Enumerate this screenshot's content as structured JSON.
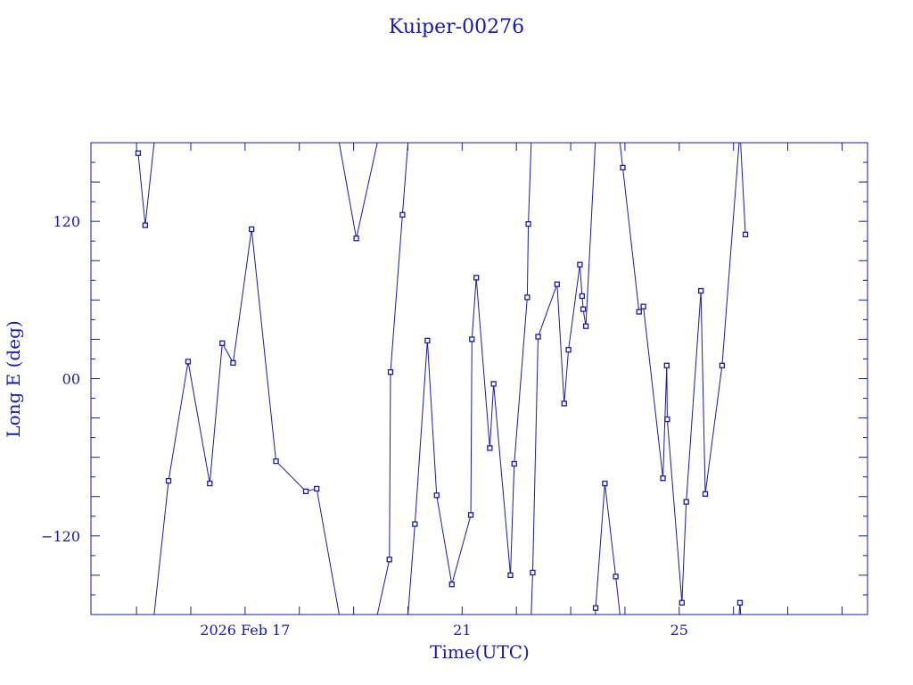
{
  "chart_data": {
    "type": "line",
    "title": "Kuiper-00276",
    "xlabel": "Time(UTC)",
    "ylabel": "Long E (deg)",
    "x_unit": "days since 2026 Feb 17 00:00 UTC",
    "xlim": [
      -2.84,
      11.47
    ],
    "ylim": [
      -180,
      180
    ],
    "x_tick_labels": [
      {
        "x": 0,
        "label": "2026 Feb 17"
      },
      {
        "x": 4,
        "label": "21"
      },
      {
        "x": 8,
        "label": "25"
      }
    ],
    "y_tick_labels": [
      {
        "y": 120,
        "label": "120"
      },
      {
        "y": 0,
        "label": "00"
      },
      {
        "y": -120,
        "label": "−120"
      }
    ],
    "color": "#1a1aa6",
    "grid": false,
    "points": [
      {
        "x": -1.97,
        "y": 172
      },
      {
        "x": -1.84,
        "y": 117
      },
      {
        "x": -1.41,
        "y": -78
      },
      {
        "x": -1.05,
        "y": 13
      },
      {
        "x": -0.65,
        "y": -80
      },
      {
        "x": -0.42,
        "y": 27
      },
      {
        "x": -0.22,
        "y": 12
      },
      {
        "x": 0.12,
        "y": 114
      },
      {
        "x": 0.57,
        "y": -63
      },
      {
        "x": 1.12,
        "y": -86
      },
      {
        "x": 1.32,
        "y": -84
      },
      {
        "x": 2.05,
        "y": 107
      },
      {
        "x": 2.66,
        "y": -138
      },
      {
        "x": 2.68,
        "y": 5
      },
      {
        "x": 2.9,
        "y": 125
      },
      {
        "x": 3.13,
        "y": -111
      },
      {
        "x": 3.36,
        "y": 29
      },
      {
        "x": 3.53,
        "y": -89
      },
      {
        "x": 3.81,
        "y": -157
      },
      {
        "x": 4.16,
        "y": -104
      },
      {
        "x": 4.18,
        "y": 30
      },
      {
        "x": 4.26,
        "y": 77
      },
      {
        "x": 4.51,
        "y": -53
      },
      {
        "x": 4.58,
        "y": -4
      },
      {
        "x": 4.89,
        "y": -150
      },
      {
        "x": 4.96,
        "y": -65
      },
      {
        "x": 5.2,
        "y": 62
      },
      {
        "x": 5.22,
        "y": 118
      },
      {
        "x": 5.3,
        "y": -148
      },
      {
        "x": 5.4,
        "y": 32
      },
      {
        "x": 5.75,
        "y": 72
      },
      {
        "x": 5.88,
        "y": -19
      },
      {
        "x": 5.96,
        "y": 22
      },
      {
        "x": 6.17,
        "y": 87
      },
      {
        "x": 6.21,
        "y": 63
      },
      {
        "x": 6.23,
        "y": 53
      },
      {
        "x": 6.28,
        "y": 40
      },
      {
        "x": 6.46,
        "y": -175
      },
      {
        "x": 6.63,
        "y": -80
      },
      {
        "x": 6.83,
        "y": -151
      },
      {
        "x": 6.96,
        "y": 161
      },
      {
        "x": 7.26,
        "y": 51
      },
      {
        "x": 7.34,
        "y": 55
      },
      {
        "x": 7.7,
        "y": -76
      },
      {
        "x": 7.77,
        "y": 10
      },
      {
        "x": 7.78,
        "y": -31
      },
      {
        "x": 8.05,
        "y": -171
      },
      {
        "x": 8.13,
        "y": -94
      },
      {
        "x": 8.4,
        "y": 67
      },
      {
        "x": 8.48,
        "y": -88
      },
      {
        "x": 8.79,
        "y": 10
      },
      {
        "x": 9.12,
        "y": -171
      },
      {
        "x": 9.22,
        "y": 110
      }
    ]
  }
}
